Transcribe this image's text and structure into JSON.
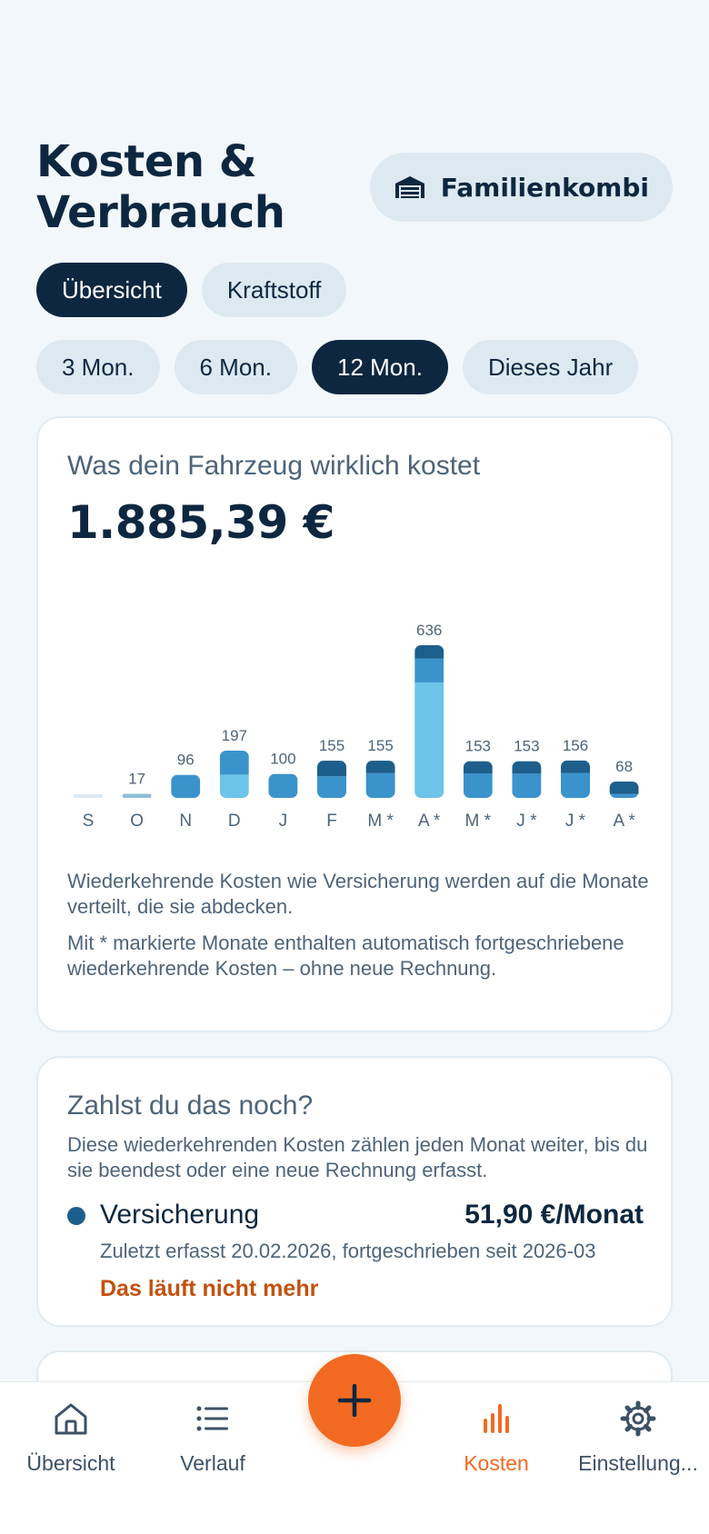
{
  "header": {
    "title": "Kosten & Verbrauch",
    "vehicle_label": "Familienkombi"
  },
  "tabs": [
    {
      "label": "Übersicht",
      "active": true
    },
    {
      "label": "Kraftstoff",
      "active": false
    }
  ],
  "ranges": [
    {
      "label": "3 Mon.",
      "active": false
    },
    {
      "label": "6 Mon.",
      "active": false
    },
    {
      "label": "12 Mon.",
      "active": true
    },
    {
      "label": "Dieses Jahr",
      "active": false
    }
  ],
  "cost_card": {
    "label": "Was dein Fahrzeug wirklich kostet",
    "total": "1.885,39 €",
    "note1": "Wiederkehrende Kosten wie Versicherung werden auf die Monate verteilt, die sie abdecken.",
    "note2": "Mit * markierte Monate enthalten automatisch fortgeschriebene wiederkehrende Kosten – ohne neue Rechnung."
  },
  "chart_data": {
    "type": "bar",
    "stacked": true,
    "categories": [
      "S",
      "O",
      "N",
      "D",
      "J",
      "F",
      "M *",
      "A *",
      "M *",
      "J *",
      "J *",
      "A *"
    ],
    "totals_labels": [
      "",
      "17",
      "96",
      "197",
      "100",
      "155",
      "155",
      "636",
      "153",
      "153",
      "156",
      "68"
    ],
    "series": [
      {
        "color": "#6cc4e8",
        "values": [
          0,
          0,
          0,
          97,
          0,
          0,
          0,
          481,
          0,
          0,
          0,
          0
        ]
      },
      {
        "color": "#3b93cc",
        "values": [
          0,
          0,
          96,
          100,
          100,
          90,
          103,
          100,
          101,
          101,
          104,
          16
        ]
      },
      {
        "color": "#1d5f8c",
        "values": [
          0,
          0,
          0,
          0,
          0,
          65,
          52,
          55,
          52,
          52,
          52,
          52
        ]
      },
      {
        "color": "#8fbfd6",
        "values": [
          0,
          17,
          0,
          0,
          0,
          0,
          0,
          0,
          0,
          0,
          0,
          0
        ]
      },
      {
        "color": "#dde9f1",
        "values": [
          1,
          0,
          0,
          0,
          0,
          0,
          0,
          0,
          0,
          0,
          0,
          0
        ]
      }
    ],
    "ylim": [
      0,
      636
    ]
  },
  "recurring": {
    "title": "Zahlst du das noch?",
    "description": "Diese wiederkehrenden Kosten zählen jeden Monat weiter, bis du sie beendest oder eine neue Rechnung erfasst.",
    "items": [
      {
        "name": "Versicherung",
        "price": "51,90 €/Monat",
        "meta": "Zuletzt erfasst 20.02.2026, fortgeschrieben seit 2026-03",
        "action": "Das läuft nicht mehr",
        "color": "#1d5f8c"
      }
    ]
  },
  "nav": {
    "items": [
      {
        "label": "Übersicht",
        "icon": "home-icon",
        "active": false
      },
      {
        "label": "Verlauf",
        "icon": "list-icon",
        "active": false
      },
      {
        "label": "Kosten",
        "icon": "bar-chart-icon",
        "active": true
      },
      {
        "label": "Einstellung...",
        "icon": "gear-icon",
        "active": false
      }
    ],
    "fab_icon": "plus-icon"
  },
  "colors": {
    "accent": "#f26a21",
    "navy": "#0e2740",
    "chip": "#dde9f1",
    "background": "#f2f7fb"
  }
}
